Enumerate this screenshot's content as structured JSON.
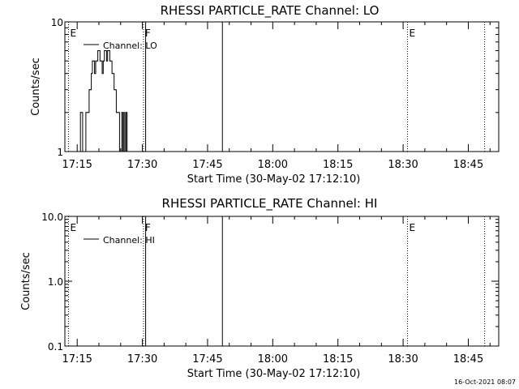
{
  "timestamp": "16-Oct-2021 08:07",
  "chart_data": [
    {
      "type": "line",
      "title": "RHESSI PARTICLE_RATE Channel: LO",
      "xlabel": "Start Time (30-May-02 17:12:10)",
      "ylabel": "Counts/sec",
      "ylog": true,
      "ylim": [
        1,
        10
      ],
      "xlim": [
        "17:12:10",
        "18:52:00"
      ],
      "x_ticks": [
        "17:15",
        "17:30",
        "17:45",
        "18:00",
        "18:15",
        "18:30",
        "18:45"
      ],
      "y_ticks": [
        {
          "value": 1,
          "label": "1"
        },
        {
          "value": 10,
          "label": "10"
        }
      ],
      "legend": {
        "position": "top-left",
        "entries": [
          "Channel: LO"
        ]
      },
      "markers": [
        {
          "time": "17:13:00",
          "label": "E",
          "style": "dotted"
        },
        {
          "time": "17:30:15",
          "label": "F",
          "style": "dotted"
        },
        {
          "time": "17:30:45",
          "label": "",
          "style": "solid"
        },
        {
          "time": "17:48:25",
          "label": "",
          "style": "solid"
        },
        {
          "time": "18:31:00",
          "label": "E",
          "style": "dotted"
        },
        {
          "time": "18:48:45",
          "label": "",
          "style": "dotted"
        }
      ],
      "series": [
        {
          "x": [
            "17:15:30",
            "17:15:45",
            "17:16:00",
            "17:16:15",
            "17:16:30",
            "17:16:45",
            "17:17:00",
            "17:17:15",
            "17:17:30",
            "17:17:45",
            "17:18:00",
            "17:18:15",
            "17:18:30",
            "17:18:45",
            "17:19:00",
            "17:19:15",
            "17:19:30",
            "17:19:45",
            "17:20:00",
            "17:20:15",
            "17:20:30",
            "17:20:45",
            "17:21:00",
            "17:21:15",
            "17:21:30",
            "17:21:45",
            "17:22:00",
            "17:22:15",
            "17:22:30",
            "17:22:45",
            "17:23:00",
            "17:23:15",
            "17:23:30",
            "17:23:45",
            "17:24:00",
            "17:24:15",
            "17:24:30",
            "17:24:45",
            "17:25:00",
            "17:25:15",
            "17:25:30",
            "17:25:45",
            "17:26:00",
            "17:26:15",
            "17:26:30",
            "17:26:45",
            "17:27:00",
            "17:27:15",
            "17:27:30",
            "17:27:45",
            "17:28:00",
            "17:28:15",
            "17:28:30",
            "17:28:45",
            "17:29:00",
            "17:29:15",
            "17:29:30",
            "17:29:45",
            "17:30:00"
          ],
          "values": [
            1,
            2,
            2,
            1,
            1,
            1,
            2,
            2,
            2,
            3,
            3,
            4,
            5,
            5,
            4,
            5,
            5,
            6,
            6,
            5,
            5,
            4,
            5,
            6,
            6,
            5,
            6,
            6,
            5,
            5,
            4,
            4,
            3,
            3,
            2,
            2,
            2,
            1,
            1,
            2,
            1,
            2,
            1,
            2,
            1,
            1,
            1,
            1,
            1,
            1,
            1,
            1,
            1,
            1,
            1,
            1,
            1,
            1,
            1
          ]
        }
      ]
    },
    {
      "type": "line",
      "title": "RHESSI PARTICLE_RATE Channel: HI",
      "xlabel": "Start Time (30-May-02 17:12:10)",
      "ylabel": "Counts/sec",
      "ylog": true,
      "ylim": [
        0.1,
        10
      ],
      "xlim": [
        "17:12:10",
        "18:52:00"
      ],
      "x_ticks": [
        "17:15",
        "17:30",
        "17:45",
        "18:00",
        "18:15",
        "18:30",
        "18:45"
      ],
      "y_ticks": [
        {
          "value": 0.1,
          "label": "0.1"
        },
        {
          "value": 1,
          "label": "1.0"
        },
        {
          "value": 10,
          "label": "10.0"
        }
      ],
      "legend": {
        "position": "top-left",
        "entries": [
          "Channel: HI"
        ]
      },
      "markers": [
        {
          "time": "17:13:00",
          "label": "E",
          "style": "dotted"
        },
        {
          "time": "17:30:15",
          "label": "F",
          "style": "dotted"
        },
        {
          "time": "17:30:45",
          "label": "",
          "style": "solid"
        },
        {
          "time": "17:48:25",
          "label": "",
          "style": "solid"
        },
        {
          "time": "18:31:00",
          "label": "E",
          "style": "dotted"
        },
        {
          "time": "18:48:45",
          "label": "",
          "style": "dotted"
        }
      ],
      "series": [
        {
          "x": [],
          "values": []
        }
      ]
    }
  ]
}
